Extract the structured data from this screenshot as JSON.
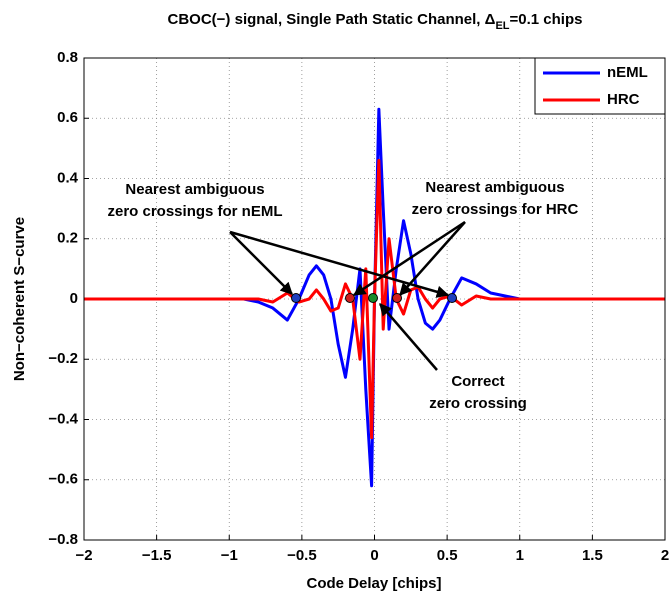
{
  "chart_data": {
    "type": "line",
    "title": {
      "text": "CBOC(−) signal, Single Path Static Channel, Δ",
      "sub": "EL",
      "after": "=0.1 chips"
    },
    "x_label": "Code Delay [chips]",
    "y_label": "Non−coherent S−curve",
    "x": [
      -2,
      -1,
      -0.9,
      -0.8,
      -0.7,
      -0.6,
      -0.52,
      -0.45,
      -0.4,
      -0.35,
      -0.3,
      -0.25,
      -0.2,
      -0.15,
      -0.1,
      -0.06,
      -0.02,
      0,
      0.03,
      0.06,
      0.1,
      0.15,
      0.2,
      0.25,
      0.3,
      0.35,
      0.4,
      0.45,
      0.52,
      0.6,
      0.7,
      0.8,
      0.9,
      1,
      2
    ],
    "series": [
      {
        "name": "nEML",
        "color": "#0000ff",
        "values": [
          0,
          0,
          0,
          -0.01,
          -0.03,
          -0.07,
          0,
          0.08,
          0.11,
          0.08,
          0,
          -0.15,
          -0.26,
          -0.1,
          0.1,
          -0.3,
          -0.62,
          0,
          0.63,
          0.3,
          -0.1,
          0.1,
          0.26,
          0.15,
          0,
          -0.08,
          -0.1,
          -0.07,
          0,
          0.07,
          0.05,
          0.02,
          0.01,
          0,
          0
        ]
      },
      {
        "name": "HRC",
        "color": "#ff0000",
        "values": [
          0,
          0,
          0,
          0,
          -0.01,
          0.02,
          -0.01,
          0,
          0.03,
          0,
          -0.04,
          -0.03,
          0.05,
          0,
          -0.2,
          0.1,
          -0.46,
          0,
          0.46,
          -0.1,
          0.2,
          0,
          -0.05,
          0.03,
          0.04,
          0,
          -0.03,
          0,
          0.01,
          -0.02,
          0.01,
          0,
          0,
          0,
          0
        ]
      }
    ],
    "xlim": [
      -2,
      2
    ],
    "ylim": [
      -0.8,
      0.8
    ],
    "xticks": [
      {
        "value": -2,
        "label": "−2"
      },
      {
        "value": -1.5,
        "label": "−1.5"
      },
      {
        "value": -1,
        "label": "−1"
      },
      {
        "value": -0.5,
        "label": "−0.5"
      },
      0,
      0.5,
      1,
      1.5,
      2
    ],
    "yticks": [
      {
        "value": -0.8,
        "label": "−0.8"
      },
      {
        "value": -0.6,
        "label": "−0.6"
      },
      {
        "value": -0.4,
        "label": "−0.4"
      },
      {
        "value": -0.2,
        "label": "−0.2"
      },
      0,
      0.2,
      0.4,
      0.6,
      0.8
    ],
    "grid": true,
    "legend": "upper right",
    "annotations": [
      {
        "lines": [
          "Nearest ambiguous",
          "zero crossings for nEML"
        ]
      },
      {
        "lines": [
          "Nearest ambiguous",
          "zero crossings for HRC"
        ]
      },
      {
        "lines": [
          "Correct",
          "zero crossing"
        ]
      }
    ]
  }
}
